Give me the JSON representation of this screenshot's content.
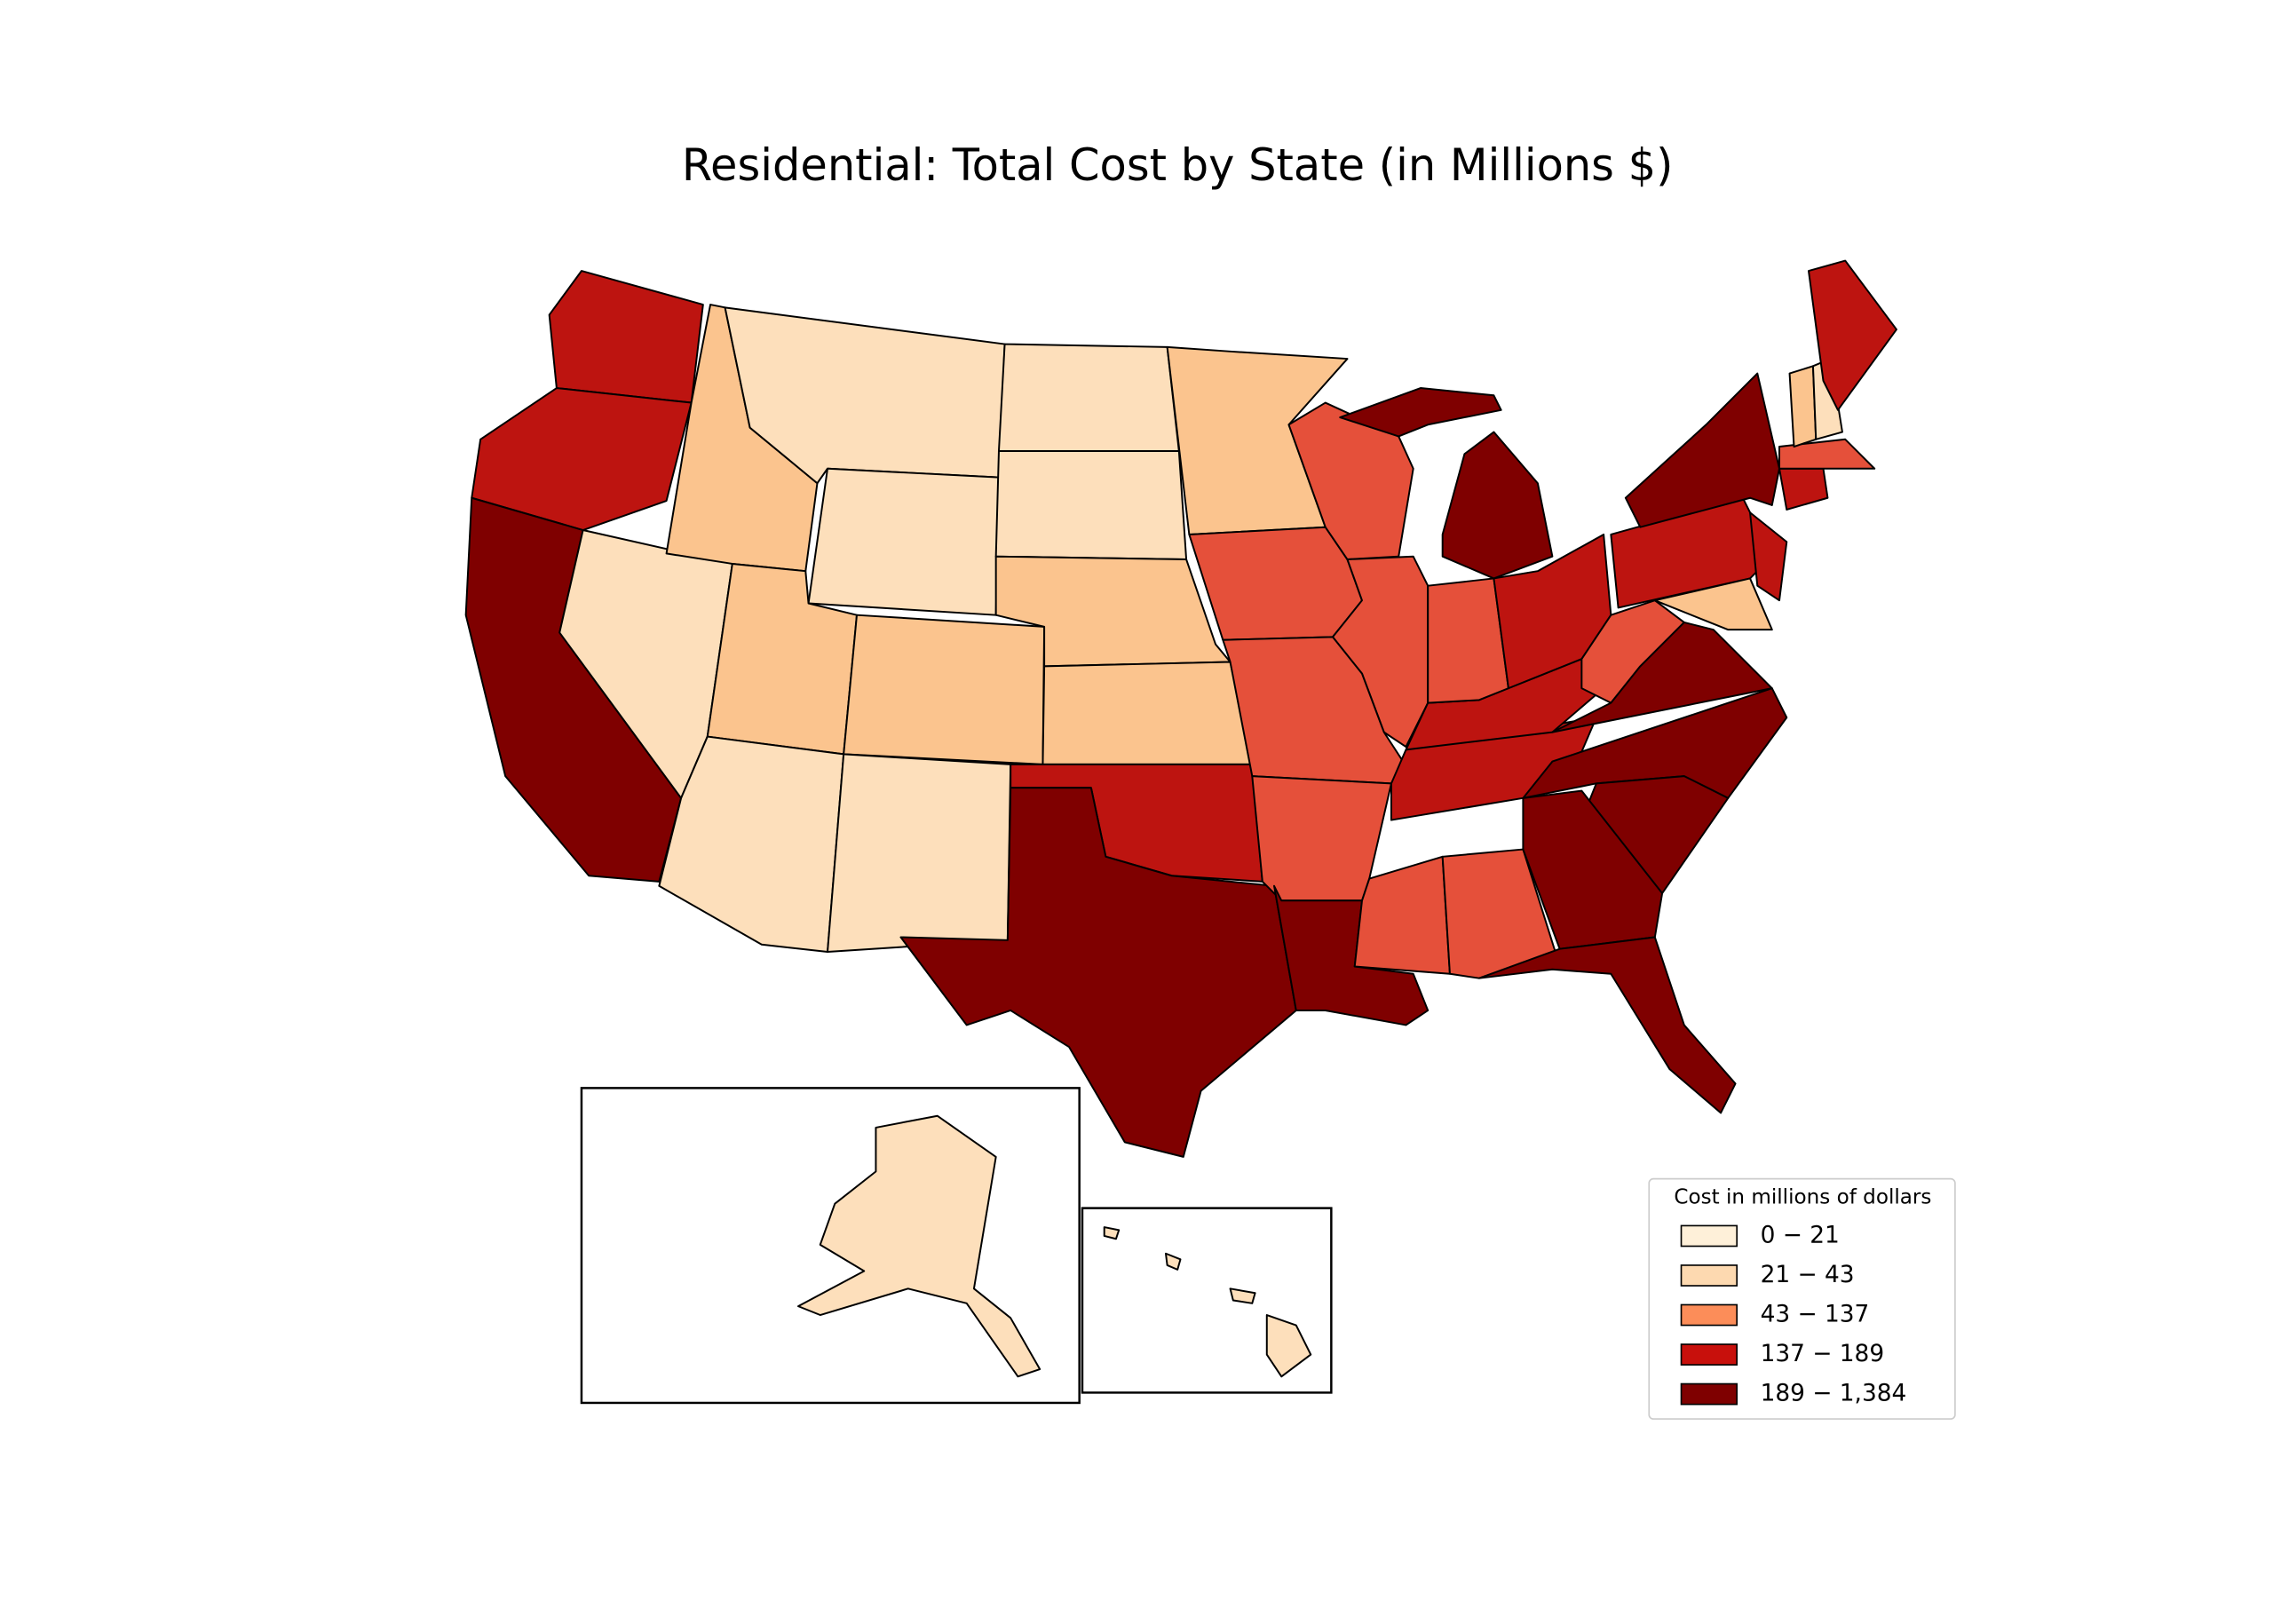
{
  "title": "Residential: Total Cost by State (in Millions $)",
  "legend": {
    "title": "Cost in millions of dollars",
    "entries": [
      {
        "label": "0 − 21",
        "color": "#fef0d9"
      },
      {
        "label": "21 − 43",
        "color": "#fdd9b0"
      },
      {
        "label": "43 − 137",
        "color": "#fc8d59"
      },
      {
        "label": "137 − 189",
        "color": "#c8100c"
      },
      {
        "label": "189 − 1,384",
        "color": "#7f0000"
      }
    ]
  }
}
